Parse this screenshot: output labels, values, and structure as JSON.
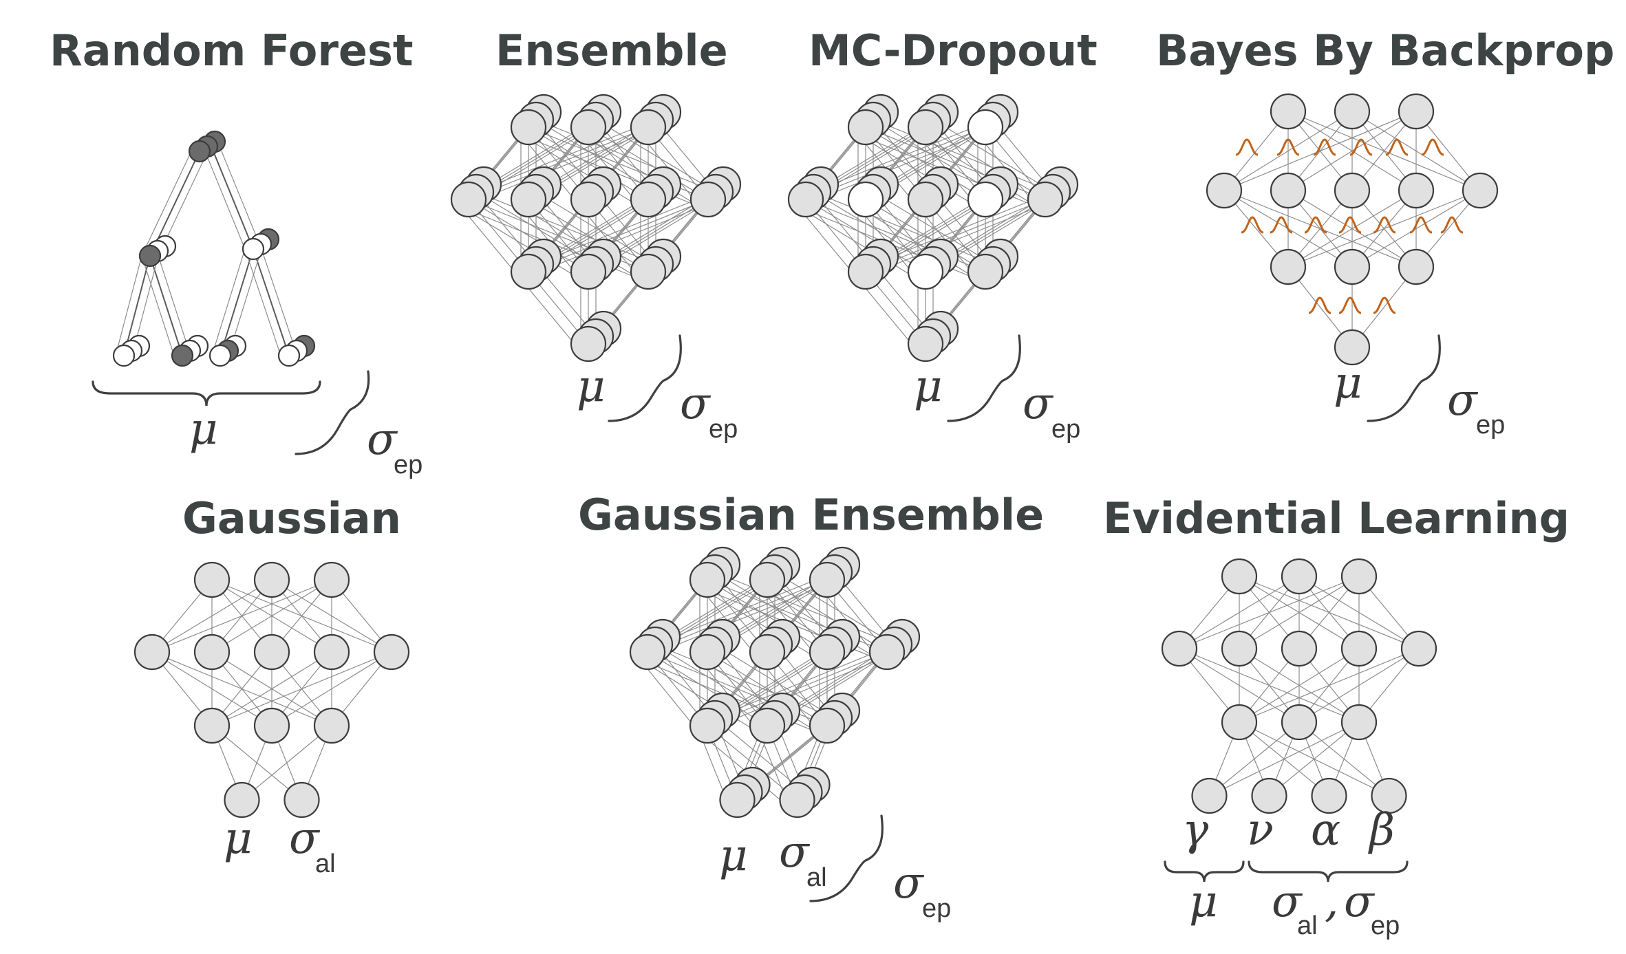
{
  "panels": {
    "random_forest": {
      "title": "Random Forest",
      "mu": "μ",
      "sigma": "σ",
      "sigma_sub": "ep"
    },
    "ensemble": {
      "title": "Ensemble",
      "mu": "μ",
      "sigma": "σ",
      "sigma_sub": "ep"
    },
    "mc_dropout": {
      "title": "MC-Dropout",
      "mu": "μ",
      "sigma": "σ",
      "sigma_sub": "ep"
    },
    "bayes_by_backprop": {
      "title": "Bayes By Backprop",
      "mu": "μ",
      "sigma": "σ",
      "sigma_sub": "ep"
    },
    "gaussian": {
      "title": "Gaussian",
      "mu": "μ",
      "sigma": "σ",
      "sigma_sub": "al"
    },
    "gaussian_ensemble": {
      "title": "Gaussian Ensemble",
      "mu": "μ",
      "sigma_al": "σ",
      "sigma_al_sub": "al",
      "sigma_ep": "σ",
      "sigma_ep_sub": "ep"
    },
    "evidential_learning": {
      "title": "Evidential Learning",
      "outputs": [
        "γ",
        "ν",
        "α",
        "β"
      ],
      "mu": "μ",
      "sigma_al": "σ",
      "sigma_al_sub": "al",
      "comma": ",",
      "sigma_ep": "σ",
      "sigma_ep_sub": "ep"
    }
  },
  "colors": {
    "title": "#3e4444",
    "node_fill": "#e1e1e1",
    "node_stroke": "#3c3c3c",
    "dark_node": "#6b6b6b",
    "white_node": "#ffffff",
    "edge": "#8c8c8c",
    "gaussian_curve": "#c0631a"
  }
}
